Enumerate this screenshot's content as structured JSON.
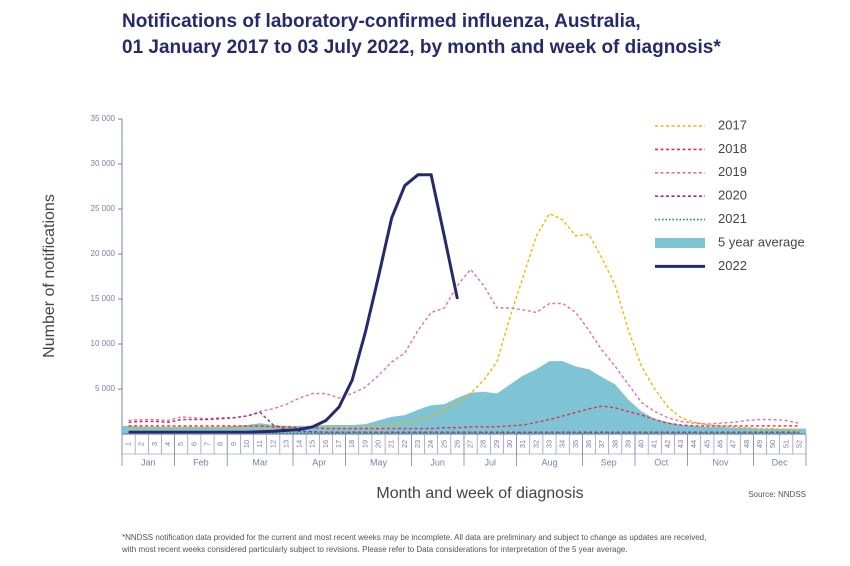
{
  "chart_data": {
    "type": "line",
    "title_lines": [
      "Notifications of laboratory-confirmed influenza, Australia,",
      "01 January 2017 to 03 July 2022, by month and week of diagnosis*"
    ],
    "x_label": "Month and week of diagnosis",
    "y_label": "Number of notifications",
    "source": "Source: NNDSS",
    "footnote_lines": [
      "*NNDSS notification data provided for the current and most recent weeks may be incomplete. All data are preliminary and subject to change as updates are received,",
      "with most recent weeks considered particularly subject to revisions. Please refer to Data considerations for interpretation of the 5 year average."
    ],
    "categories": [
      "1",
      "2",
      "3",
      "4",
      "5",
      "6",
      "7",
      "8",
      "9",
      "10",
      "11",
      "12",
      "13",
      "14",
      "15",
      "16",
      "17",
      "18",
      "19",
      "20",
      "21",
      "22",
      "23",
      "24",
      "25",
      "26",
      "27",
      "28",
      "29",
      "30",
      "31",
      "32",
      "33",
      "34",
      "35",
      "36",
      "37",
      "38",
      "39",
      "40",
      "41",
      "42",
      "43",
      "44",
      "45",
      "46",
      "47",
      "48",
      "49",
      "50",
      "51",
      "52"
    ],
    "months": [
      "Jan",
      "Feb",
      "Mar",
      "Apr",
      "May",
      "Jun",
      "Jul",
      "Aug",
      "Sep",
      "Oct",
      "Nov",
      "Dec"
    ],
    "month_weeks": [
      4,
      4,
      5,
      4,
      5,
      4,
      4,
      5,
      4,
      4,
      5,
      4
    ],
    "ylim": [
      0,
      35000
    ],
    "yticks": [
      {
        "value": 5000,
        "label": "5 000"
      },
      {
        "value": 10000,
        "label": "10 000"
      },
      {
        "value": 15000,
        "label": "15 000"
      },
      {
        "value": 20000,
        "label": "20 000"
      },
      {
        "value": 25000,
        "label": "25 000"
      },
      {
        "value": 30000,
        "label": "30 000"
      },
      {
        "value": 35000,
        "label": "35 000"
      }
    ],
    "legend": "upper right",
    "series": [
      {
        "name": "2017",
        "color": "#f5b400",
        "style": "dashed",
        "values": [
          700,
          700,
          700,
          700,
          700,
          700,
          700,
          700,
          700,
          700,
          700,
          700,
          700,
          700,
          700,
          700,
          700,
          700,
          700,
          800,
          1000,
          1200,
          1500,
          2000,
          2600,
          3500,
          4500,
          6000,
          8000,
          13000,
          17500,
          22000,
          24500,
          23800,
          22000,
          22200,
          19500,
          16500,
          11500,
          7500,
          5000,
          3000,
          1800,
          1300,
          1000,
          900,
          800,
          700,
          600,
          600,
          500,
          500
        ]
      },
      {
        "name": "2018",
        "color": "#e0304e",
        "style": "dashed",
        "values": [
          900,
          900,
          900,
          900,
          900,
          900,
          900,
          900,
          900,
          900,
          900,
          800,
          800,
          700,
          700,
          600,
          600,
          600,
          600,
          600,
          600,
          600,
          600,
          600,
          700,
          700,
          800,
          800,
          800,
          900,
          1000,
          1300,
          1600,
          2000,
          2400,
          2800,
          3100,
          2900,
          2500,
          2100,
          1600,
          1200,
          1000,
          900,
          900,
          900,
          900,
          900,
          900,
          900,
          900,
          900
        ]
      },
      {
        "name": "2019",
        "color": "#e8709a",
        "style": "dashed",
        "values": [
          1500,
          1600,
          1600,
          1500,
          1900,
          1800,
          1700,
          1800,
          1800,
          2000,
          2500,
          2800,
          3300,
          4000,
          4500,
          4500,
          4000,
          4500,
          5200,
          6500,
          8000,
          9000,
          11500,
          13500,
          14000,
          16500,
          18300,
          16500,
          14000,
          14000,
          13800,
          13500,
          14500,
          14500,
          13500,
          11500,
          9300,
          7500,
          5500,
          3500,
          2500,
          1800,
          1400,
          1200,
          1100,
          1200,
          1300,
          1500,
          1600,
          1600,
          1500,
          1200
        ]
      },
      {
        "name": "2020",
        "color": "#a03080",
        "style": "dashed",
        "values": [
          1300,
          1400,
          1400,
          1300,
          1600,
          1600,
          1600,
          1700,
          1800,
          2000,
          2400,
          1000,
          500,
          300,
          250,
          200,
          200,
          200,
          200,
          200,
          200,
          200,
          200,
          200,
          200,
          200,
          200,
          200,
          200,
          200,
          200,
          200,
          200,
          200,
          200,
          200,
          200,
          200,
          200,
          200,
          200,
          200,
          200,
          200,
          200,
          200,
          200,
          200,
          200,
          200,
          200,
          200
        ]
      },
      {
        "name": "2021",
        "color": "#1e8a4a",
        "style": "dotted",
        "values": [
          100,
          100,
          100,
          100,
          100,
          100,
          100,
          100,
          100,
          100,
          100,
          100,
          100,
          100,
          100,
          100,
          100,
          100,
          100,
          100,
          100,
          100,
          100,
          100,
          100,
          100,
          100,
          100,
          100,
          100,
          100,
          100,
          100,
          100,
          100,
          100,
          100,
          100,
          100,
          100,
          100,
          100,
          100,
          100,
          100,
          100,
          100,
          100,
          100,
          100,
          100,
          100
        ]
      },
      {
        "name": "5 year average",
        "color": "#7fc4d4",
        "style": "area",
        "values": [
          900,
          800,
          800,
          800,
          800,
          800,
          800,
          800,
          900,
          1000,
          1200,
          1000,
          900,
          900,
          900,
          1000,
          1000,
          1000,
          1100,
          1500,
          1900,
          2100,
          2700,
          3200,
          3300,
          4000,
          4600,
          4700,
          4500,
          5500,
          6500,
          7200,
          8100,
          8100,
          7500,
          7200,
          6300,
          5500,
          3800,
          2500,
          1700,
          1300,
          1000,
          900,
          800,
          800,
          700,
          700,
          600,
          600,
          600,
          600
        ]
      },
      {
        "name": "2022",
        "color": "#262a6b",
        "style": "solid",
        "values": [
          200,
          200,
          200,
          200,
          200,
          200,
          200,
          200,
          200,
          200,
          250,
          300,
          400,
          500,
          800,
          1500,
          3000,
          6000,
          11300,
          17500,
          24000,
          27600,
          28800,
          28800,
          22000,
          15000,
          null,
          null,
          null,
          null,
          null,
          null,
          null,
          null,
          null,
          null,
          null,
          null,
          null,
          null,
          null,
          null,
          null,
          null,
          null,
          null,
          null,
          null,
          null,
          null,
          null,
          null
        ]
      }
    ]
  }
}
